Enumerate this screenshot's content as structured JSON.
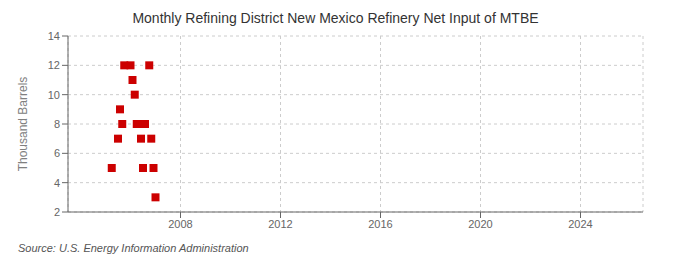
{
  "chart_data": {
    "type": "scatter",
    "title": "Monthly Refining District New Mexico Refinery Net Input of MTBE",
    "ylabel": "Thousand Barrels",
    "annotation": "Source: U.S. Energy Information Administration",
    "x": [
      2005.25,
      2005.5,
      2005.58,
      2005.67,
      2005.75,
      2006.0,
      2006.08,
      2006.17,
      2006.25,
      2006.33,
      2006.42,
      2006.5,
      2006.58,
      2006.75,
      2006.83,
      2006.92,
      2007.0
    ],
    "values": [
      5,
      7,
      9,
      8,
      12,
      12,
      11,
      10,
      8,
      8,
      7,
      5,
      8,
      12,
      7,
      5,
      3
    ],
    "color": "#cc0000",
    "marker": "square",
    "xlim": [
      2003.5,
      2026.5
    ],
    "ylim": [
      2,
      14
    ],
    "xticks": [
      2008,
      2012,
      2016,
      2020,
      2024
    ],
    "yticks": [
      2,
      4,
      6,
      8,
      10,
      12,
      14
    ],
    "grid": true
  }
}
